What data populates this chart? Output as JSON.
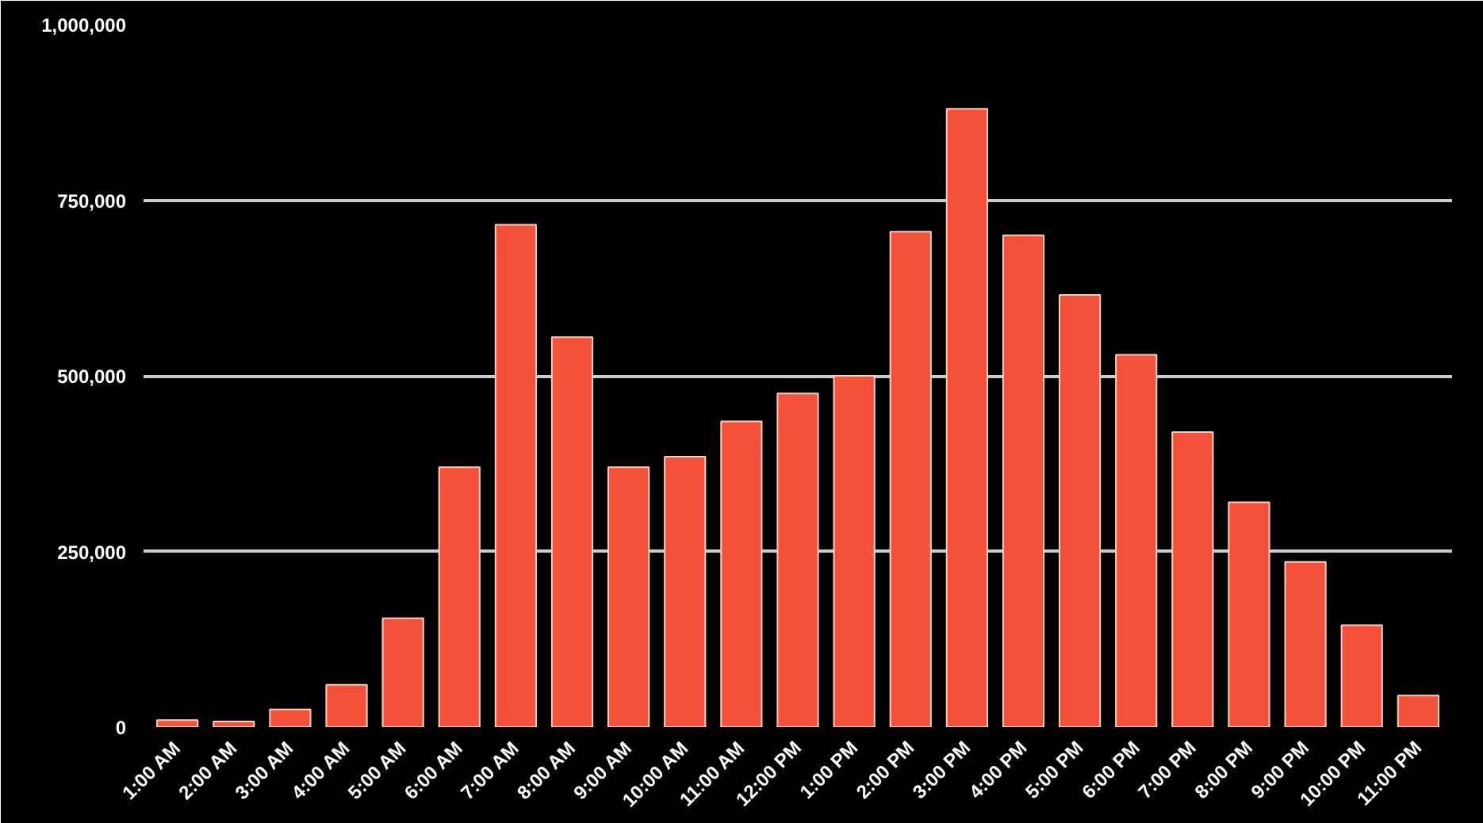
{
  "chart_data": {
    "type": "bar",
    "categories": [
      "1:00 AM",
      "2:00 AM",
      "3:00 AM",
      "4:00 AM",
      "5:00 AM",
      "6:00 AM",
      "7:00 AM",
      "8:00 AM",
      "9:00 AM",
      "10:00 AM",
      "11:00 AM",
      "12:00 PM",
      "1:00 PM",
      "2:00 PM",
      "3:00 PM",
      "4:00 PM",
      "5:00 PM",
      "6:00 PM",
      "7:00 PM",
      "8:00 PM",
      "9:00 PM",
      "10:00 PM",
      "11:00 PM"
    ],
    "values": [
      10000,
      8000,
      25000,
      60000,
      155000,
      370000,
      715000,
      555000,
      370000,
      385000,
      435000,
      475000,
      500000,
      705000,
      880000,
      700000,
      615000,
      530000,
      420000,
      320000,
      235000,
      145000,
      45000
    ],
    "color": "#f4513a",
    "ylim": [
      0,
      1000000
    ],
    "yticks": [
      {
        "value": 0,
        "label": "0"
      },
      {
        "value": 250000,
        "label": "250,000"
      },
      {
        "value": 500000,
        "label": "500,000"
      },
      {
        "value": 750000,
        "label": "750,000"
      },
      {
        "value": 1000000,
        "label": "1,000,000"
      }
    ],
    "grid": "y"
  }
}
